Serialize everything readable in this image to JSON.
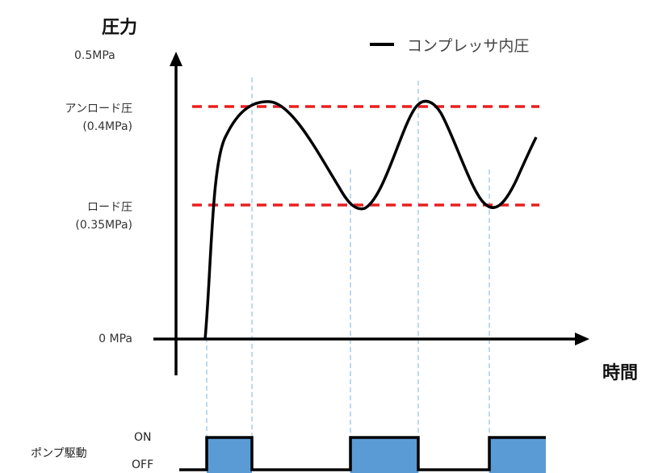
{
  "axes": {
    "y_title": "圧力",
    "x_title": "時間",
    "y_top_label": "0.5MPa",
    "y_zero_label": "0 MPa"
  },
  "thresholds": {
    "unload_name": "アンロード圧",
    "unload_value": "(0.4MPa)",
    "load_name": "ロード圧",
    "load_value": "(0.35MPa)",
    "line_color": "#e8201f"
  },
  "legend": {
    "label": "コンプレッサ内圧"
  },
  "pump": {
    "title": "ポンプ駆動",
    "on_label": "ON",
    "off_label": "OFF",
    "fill_color": "#5b9bd5"
  },
  "guide_color": "#7fb2e0"
}
